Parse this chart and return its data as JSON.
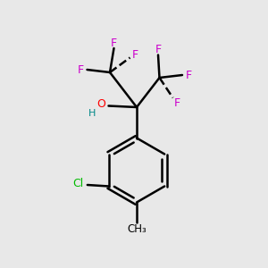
{
  "background_color": "#e8e8e8",
  "bond_color": "#000000",
  "F_color": "#cc00cc",
  "O_color": "#ff0000",
  "H_color": "#008888",
  "Cl_color": "#00bb00",
  "CH3_color": "#000000",
  "figsize": [
    3.0,
    3.0
  ],
  "dpi": 100,
  "xlim": [
    0,
    10
  ],
  "ylim": [
    0,
    10
  ]
}
